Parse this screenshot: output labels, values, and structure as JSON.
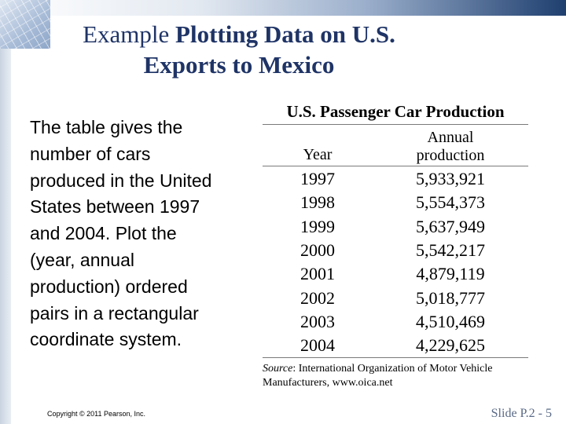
{
  "title": {
    "plain": "Example",
    "bold": "Plotting Data on U.S. Exports to Mexico"
  },
  "body_text": "The table gives the number of cars produced in the United States between 1997 and 2004. Plot the (year, annual production) ordered pairs in a rectangular coordinate system.",
  "table": {
    "title": "U.S. Passenger Car Production",
    "col_year": "Year",
    "col_prod_line1": "Annual",
    "col_prod_line2": "production",
    "rows": [
      {
        "year": "1997",
        "production": "5,933,921"
      },
      {
        "year": "1998",
        "production": "5,554,373"
      },
      {
        "year": "1999",
        "production": "5,637,949"
      },
      {
        "year": "2000",
        "production": "5,542,217"
      },
      {
        "year": "2001",
        "production": "4,879,119"
      },
      {
        "year": "2002",
        "production": "5,018,777"
      },
      {
        "year": "2003",
        "production": "4,510,469"
      },
      {
        "year": "2004",
        "production": "4,229,625"
      }
    ],
    "source_label": "Source",
    "source_text": ": International Organization of Motor Vehicle Manufacturers, www.oica.net"
  },
  "footer": {
    "copyright": "Copyright © 2011 Pearson, Inc.",
    "slide": "Slide P.2 - 5"
  },
  "colors": {
    "title": "#1f3466",
    "banner_dark": "#1f3f6f"
  }
}
